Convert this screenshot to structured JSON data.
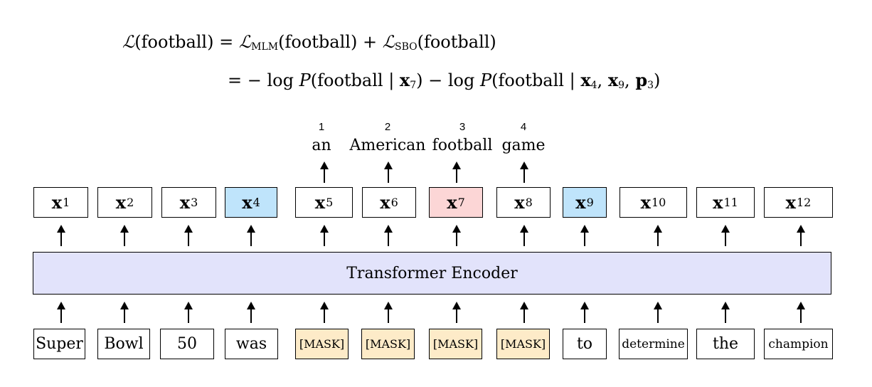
{
  "equation": {
    "line1": {
      "loss_symbol": "ℒ",
      "lhs_arg": "(football)",
      "equals": " = ",
      "mlm_sub": "MLM",
      "mlm_arg": "(football)",
      "plus": " + ",
      "sbo_sub": "SBO",
      "sbo_arg": "(football)"
    },
    "line2": {
      "equals": "= − log ",
      "p1": "P",
      "arg1_open": "(football | ",
      "x": "x",
      "sub7": "7",
      "arg1_close": ")",
      "minus": " − log ",
      "p2": "P",
      "arg2_open": "(football | ",
      "sub4": "4",
      "comma1": ", ",
      "sub9": "9",
      "comma2": ", ",
      "p": "p",
      "sub3": "3",
      "arg2_close": ")"
    }
  },
  "targets": [
    {
      "index": "1",
      "word": "an"
    },
    {
      "index": "2",
      "word": "American"
    },
    {
      "index": "3",
      "word": "football"
    },
    {
      "index": "4",
      "word": "game"
    }
  ],
  "outputs": [
    {
      "label": "x",
      "sub": "1"
    },
    {
      "label": "x",
      "sub": "2"
    },
    {
      "label": "x",
      "sub": "3"
    },
    {
      "label": "x",
      "sub": "4"
    },
    {
      "label": "x",
      "sub": "5"
    },
    {
      "label": "x",
      "sub": "6"
    },
    {
      "label": "x",
      "sub": "7"
    },
    {
      "label": "x",
      "sub": "8"
    },
    {
      "label": "x",
      "sub": "9"
    },
    {
      "label": "x",
      "sub": "10"
    },
    {
      "label": "x",
      "sub": "11"
    },
    {
      "label": "x",
      "sub": "12"
    }
  ],
  "encoder": {
    "label": "Transformer Encoder"
  },
  "inputs": [
    "Super",
    "Bowl",
    "50",
    "was",
    "[MASK]",
    "[MASK]",
    "[MASK]",
    "[MASK]",
    "to",
    "determine",
    "the",
    "champion"
  ],
  "colors": {
    "boundary": "#bfe4fb",
    "target": "#fcd6d6",
    "mask": "#fdebc8",
    "encoder": "#e2e3fb"
  }
}
